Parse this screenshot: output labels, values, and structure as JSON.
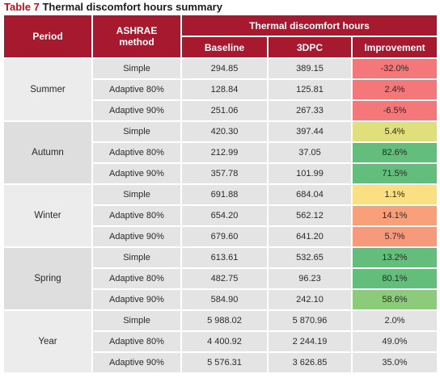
{
  "caption": {
    "number": "Table 7",
    "title": "Thermal discomfort hours summary"
  },
  "header": {
    "period": "Period",
    "method_line1": "ASHRAE",
    "method_line2": "method",
    "group": "Thermal discomfort hours",
    "baseline": "Baseline",
    "dpc": "3DPC",
    "improvement": "Improvement"
  },
  "colors": {
    "header_bg": "#a6192e",
    "negative": "#f4777a",
    "low_positive_pale": "#dfe07c",
    "high_positive": "#63be7b",
    "medium_positive": "#8bcb7a",
    "near_zero": "#fbe083",
    "low_positive_salmon": "#f9a07a"
  },
  "groups": [
    {
      "period": "Summer",
      "rows": [
        {
          "method": "Simple",
          "baseline": "294.85",
          "dpc": "389.15",
          "improvement": "-32.0%",
          "color": "red"
        },
        {
          "method": "Adaptive 80%",
          "baseline": "128.84",
          "dpc": "125.81",
          "improvement": "2.4%",
          "color": "red"
        },
        {
          "method": "Adaptive 90%",
          "baseline": "251.06",
          "dpc": "267.33",
          "improvement": "-6.5%",
          "color": "red"
        }
      ]
    },
    {
      "period": "Autumn",
      "rows": [
        {
          "method": "Simple",
          "baseline": "420.30",
          "dpc": "397.44",
          "improvement": "5.4%",
          "color": "pale"
        },
        {
          "method": "Adaptive 80%",
          "baseline": "212.99",
          "dpc": "37.05",
          "improvement": "82.6%",
          "color": "green"
        },
        {
          "method": "Adaptive 90%",
          "baseline": "357.78",
          "dpc": "101.99",
          "improvement": "71.5%",
          "color": "green"
        }
      ]
    },
    {
      "period": "Winter",
      "rows": [
        {
          "method": "Simple",
          "baseline": "691.88",
          "dpc": "684.04",
          "improvement": "1.1%",
          "color": "yellow"
        },
        {
          "method": "Adaptive 80%",
          "baseline": "654.20",
          "dpc": "562.12",
          "improvement": "14.1%",
          "color": "salmon"
        },
        {
          "method": "Adaptive 90%",
          "baseline": "679.60",
          "dpc": "641.20",
          "improvement": "5.7%",
          "color": "salmon2"
        }
      ]
    },
    {
      "period": "Spring",
      "rows": [
        {
          "method": "Simple",
          "baseline": "613.61",
          "dpc": "532.65",
          "improvement": "13.2%",
          "color": "green"
        },
        {
          "method": "Adaptive 80%",
          "baseline": "482.75",
          "dpc": "96.23",
          "improvement": "80.1%",
          "color": "green"
        },
        {
          "method": "Adaptive 90%",
          "baseline": "584.90",
          "dpc": "242.10",
          "improvement": "58.6%",
          "color": "lgreen"
        }
      ]
    },
    {
      "period": "Year",
      "rows": [
        {
          "method": "Simple",
          "baseline": "5 988.02",
          "dpc": "5 870.96",
          "improvement": "2.0%",
          "color": "none"
        },
        {
          "method": "Adaptive 80%",
          "baseline": "4 400.92",
          "dpc": "2 244.19",
          "improvement": "49.0%",
          "color": "none"
        },
        {
          "method": "Adaptive 90%",
          "baseline": "5 576.31",
          "dpc": "3 626.85",
          "improvement": "35.0%",
          "color": "none"
        }
      ]
    }
  ]
}
